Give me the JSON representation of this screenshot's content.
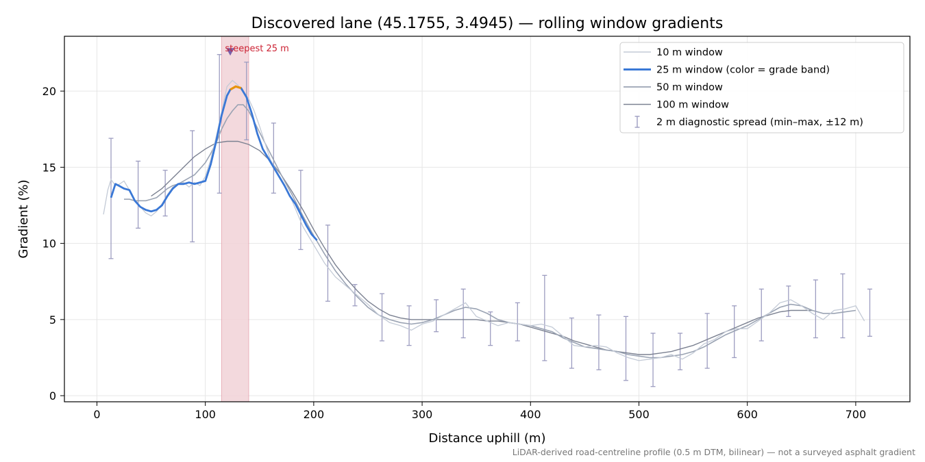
{
  "chart_data": {
    "type": "line",
    "title": "Discovered lane (45.1755, 3.4945) — rolling window gradients",
    "xlabel": "Distance uphill (m)",
    "ylabel": "Gradient (%)",
    "xlim": [
      -30,
      750
    ],
    "ylim": [
      -0.4,
      23.6
    ],
    "xticks": [
      0,
      100,
      200,
      300,
      400,
      500,
      600,
      700
    ],
    "yticks": [
      0,
      5,
      10,
      15,
      20
    ],
    "grid": true,
    "legend_position": "top-right",
    "footnote": "LiDAR-derived road-centreline profile (0.5 m DTM, bilinear) — not a surveyed asphalt gradient",
    "highlight": {
      "label": "steepest 25 m",
      "x_start": 115,
      "x_end": 140,
      "marker_x": 123,
      "marker_y": 22.6
    },
    "colors": {
      "w10": "#c3cad6",
      "w25": "#3a78d6",
      "w25_band_high": "#e8930a",
      "w50": "#9aa3b3",
      "w100": "#7b8191",
      "errorbar": "#9c9cc0",
      "highlight_fill": "#f2d3d8",
      "highlight_edge": "#e6a2ad",
      "highlight_text": "#cc2233",
      "marker": "#7a5fa8"
    },
    "series": [
      {
        "name": "10 m window",
        "x": [
          6,
          10,
          13,
          17,
          21,
          25,
          30,
          35,
          40,
          45,
          50,
          55,
          60,
          65,
          70,
          75,
          80,
          85,
          90,
          95,
          100,
          105,
          110,
          115,
          120,
          125,
          130,
          135,
          140,
          145,
          150,
          155,
          160,
          170,
          180,
          190,
          200,
          210,
          220,
          230,
          240,
          250,
          260,
          270,
          280,
          290,
          300,
          310,
          320,
          330,
          340,
          350,
          360,
          370,
          380,
          390,
          400,
          410,
          420,
          430,
          440,
          450,
          460,
          470,
          480,
          490,
          500,
          510,
          520,
          530,
          540,
          550,
          560,
          570,
          580,
          590,
          600,
          610,
          620,
          630,
          640,
          650,
          660,
          670,
          680,
          690,
          700,
          708
        ],
        "y": [
          11.9,
          13.5,
          14.2,
          13.8,
          13.9,
          14.1,
          13.5,
          12.8,
          12.4,
          12.0,
          11.8,
          12.1,
          12.6,
          13.2,
          13.7,
          13.9,
          14.0,
          13.7,
          14.0,
          13.8,
          14.4,
          15.5,
          17.0,
          18.6,
          20.3,
          20.7,
          20.4,
          19.9,
          19.5,
          18.7,
          17.7,
          16.6,
          15.5,
          14.2,
          12.8,
          11.1,
          9.9,
          8.7,
          7.8,
          7.2,
          6.6,
          6.0,
          5.3,
          4.8,
          4.6,
          4.3,
          4.7,
          4.9,
          5.3,
          5.7,
          6.1,
          5.2,
          4.9,
          4.6,
          4.8,
          4.7,
          4.6,
          4.7,
          4.5,
          3.9,
          3.3,
          3.2,
          3.3,
          3.2,
          2.8,
          2.5,
          2.3,
          2.4,
          2.5,
          2.7,
          2.4,
          2.8,
          3.4,
          3.7,
          4.2,
          4.4,
          4.4,
          4.9,
          5.4,
          6.1,
          6.3,
          5.9,
          5.4,
          5.0,
          5.6,
          5.7,
          5.9,
          4.9
        ]
      },
      {
        "name": "25 m window (color = grade band)",
        "x": [
          13,
          17,
          20,
          25,
          30,
          35,
          40,
          45,
          50,
          55,
          60,
          65,
          70,
          75,
          80,
          85,
          90,
          95,
          100,
          105,
          110,
          115,
          120,
          123,
          128,
          133,
          138,
          143,
          148,
          153,
          158,
          163,
          168,
          173,
          178,
          183,
          188,
          193,
          198,
          203
        ],
        "y": [
          13.0,
          13.9,
          13.8,
          13.6,
          13.5,
          12.8,
          12.4,
          12.2,
          12.1,
          12.2,
          12.5,
          13.1,
          13.6,
          13.9,
          13.9,
          14.0,
          13.9,
          14.0,
          14.1,
          15.2,
          16.7,
          18.4,
          19.7,
          20.1,
          20.3,
          20.2,
          19.6,
          18.5,
          17.2,
          16.2,
          15.6,
          15.0,
          14.4,
          13.8,
          13.1,
          12.6,
          11.9,
          11.2,
          10.6,
          10.2
        ]
      },
      {
        "name": "50 m window",
        "x": [
          25,
          30,
          35,
          40,
          45,
          50,
          55,
          60,
          65,
          70,
          75,
          80,
          85,
          90,
          95,
          100,
          105,
          110,
          115,
          120,
          125,
          130,
          135,
          140,
          145,
          150,
          155,
          160,
          170,
          180,
          190,
          200,
          210,
          220,
          230,
          240,
          250,
          260,
          270,
          280,
          290,
          300,
          310,
          320,
          330,
          340,
          350,
          360,
          370,
          380,
          390,
          400,
          410,
          420,
          430,
          440,
          450,
          460,
          470,
          480,
          490,
          500,
          510,
          520,
          530,
          540,
          550,
          560,
          570,
          580,
          590,
          600,
          610,
          620,
          630,
          640,
          650,
          660,
          670,
          680,
          690,
          700
        ],
        "y": [
          12.9,
          12.9,
          12.8,
          12.8,
          12.8,
          12.9,
          13.0,
          13.3,
          13.6,
          13.8,
          13.9,
          14.1,
          14.3,
          14.5,
          14.9,
          15.3,
          15.9,
          16.6,
          17.5,
          18.2,
          18.7,
          19.1,
          19.1,
          18.7,
          18.0,
          17.3,
          16.6,
          15.9,
          14.5,
          13.2,
          11.8,
          10.5,
          9.3,
          8.2,
          7.3,
          6.5,
          5.8,
          5.3,
          5.0,
          4.8,
          4.7,
          4.8,
          5.0,
          5.3,
          5.6,
          5.8,
          5.7,
          5.4,
          5.0,
          4.8,
          4.7,
          4.6,
          4.4,
          4.2,
          3.8,
          3.5,
          3.2,
          3.1,
          3.0,
          2.9,
          2.7,
          2.6,
          2.5,
          2.5,
          2.6,
          2.7,
          2.9,
          3.2,
          3.6,
          4.0,
          4.3,
          4.6,
          5.0,
          5.4,
          5.8,
          6.0,
          5.9,
          5.6,
          5.4,
          5.4,
          5.5,
          5.6
        ]
      },
      {
        "name": "100 m window",
        "x": [
          50,
          60,
          70,
          80,
          90,
          100,
          110,
          120,
          130,
          140,
          150,
          160,
          170,
          180,
          190,
          200,
          210,
          220,
          230,
          240,
          250,
          260,
          270,
          280,
          290,
          300,
          310,
          320,
          330,
          340,
          350,
          360,
          370,
          380,
          390,
          400,
          410,
          420,
          430,
          440,
          450,
          460,
          470,
          480,
          490,
          500,
          510,
          520,
          530,
          540,
          550,
          560,
          570,
          580,
          590,
          600,
          610,
          620,
          630,
          640,
          650,
          660
        ],
        "y": [
          13.1,
          13.6,
          14.3,
          15.0,
          15.7,
          16.2,
          16.6,
          16.7,
          16.7,
          16.5,
          16.1,
          15.4,
          14.5,
          13.4,
          12.2,
          10.9,
          9.7,
          8.6,
          7.7,
          6.9,
          6.2,
          5.7,
          5.3,
          5.1,
          5.0,
          5.0,
          5.0,
          5.0,
          5.0,
          5.0,
          5.0,
          4.9,
          4.9,
          4.8,
          4.7,
          4.5,
          4.3,
          4.1,
          3.9,
          3.6,
          3.4,
          3.2,
          3.0,
          2.9,
          2.8,
          2.7,
          2.7,
          2.8,
          2.9,
          3.1,
          3.3,
          3.6,
          3.9,
          4.2,
          4.5,
          4.8,
          5.1,
          5.3,
          5.5,
          5.6,
          5.6,
          5.6
        ]
      }
    ],
    "errorbars": {
      "name": "2 m diagnostic spread (min–max, ±12 m)",
      "x": [
        13,
        38,
        63,
        88,
        113,
        138,
        163,
        188,
        213,
        238,
        263,
        288,
        313,
        338,
        363,
        388,
        413,
        438,
        463,
        488,
        513,
        538,
        563,
        588,
        613,
        638,
        663,
        688,
        713
      ],
      "low": [
        9.0,
        11.0,
        11.8,
        10.1,
        13.3,
        16.8,
        13.3,
        9.6,
        6.2,
        5.9,
        3.6,
        3.3,
        4.2,
        3.8,
        3.3,
        3.6,
        2.3,
        1.8,
        1.7,
        1.0,
        0.6,
        1.7,
        1.8,
        2.5,
        3.6,
        5.2,
        3.8,
        3.8,
        3.9
      ],
      "high": [
        16.9,
        15.4,
        14.8,
        17.4,
        22.4,
        21.9,
        17.9,
        14.8,
        11.2,
        7.3,
        6.7,
        5.9,
        6.3,
        7.0,
        5.5,
        6.1,
        7.9,
        5.1,
        5.3,
        5.2,
        4.1,
        4.1,
        5.4,
        5.9,
        7.0,
        7.2,
        7.6,
        8.0,
        7.0
      ]
    },
    "legend": [
      {
        "label": "10 m window",
        "style": "w10"
      },
      {
        "label": "25 m window (color = grade band)",
        "style": "w25"
      },
      {
        "label": "50 m window",
        "style": "w50"
      },
      {
        "label": "100 m window",
        "style": "w100"
      },
      {
        "label": "2 m diagnostic spread (min–max, ±12 m)",
        "style": "errorbar"
      }
    ]
  }
}
